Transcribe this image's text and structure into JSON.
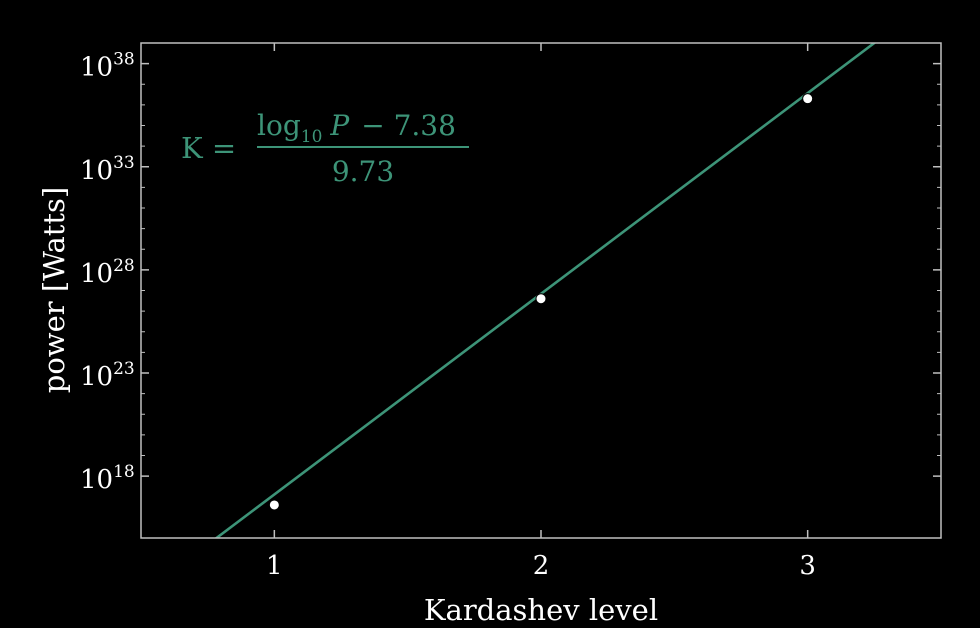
{
  "chart_data": {
    "type": "scatter",
    "title": "",
    "xlabel": "Kardashev level",
    "ylabel": "power [Watts]",
    "x_ticks": [
      1,
      2,
      3
    ],
    "x_tick_labels": [
      "1",
      "2",
      "3"
    ],
    "xlim": [
      0.5,
      3.5
    ],
    "y_scale": "log",
    "y_ticks_log10": [
      18,
      23,
      28,
      33,
      38
    ],
    "y_tick_labels": [
      {
        "base": "10",
        "exp": "18"
      },
      {
        "base": "10",
        "exp": "23"
      },
      {
        "base": "10",
        "exp": "28"
      },
      {
        "base": "10",
        "exp": "33"
      },
      {
        "base": "10",
        "exp": "38"
      }
    ],
    "ylim": [
      1000000000000000.0,
      1e+39
    ],
    "grid": false,
    "points": [
      {
        "x": 1,
        "y": 4e+16
      },
      {
        "x": 2,
        "y": 4e+26
      },
      {
        "x": 3,
        "y": 2e+36
      }
    ],
    "fit_line": {
      "description_formula": "K = (log10 P - 7.38) / 9.73",
      "slope_log10": 9.73,
      "intercept_log10": 7.38,
      "color": "#3d9478"
    },
    "annotation": {
      "lhs": "K =",
      "num_log": "log",
      "num_sub": "10",
      "num_var": "P",
      "num_rest": "− 7.38",
      "denominator": "9.73"
    },
    "colors": {
      "background": "#000000",
      "axes": "#ffffff",
      "points": "#ffffff",
      "line": "#3d9478"
    }
  }
}
